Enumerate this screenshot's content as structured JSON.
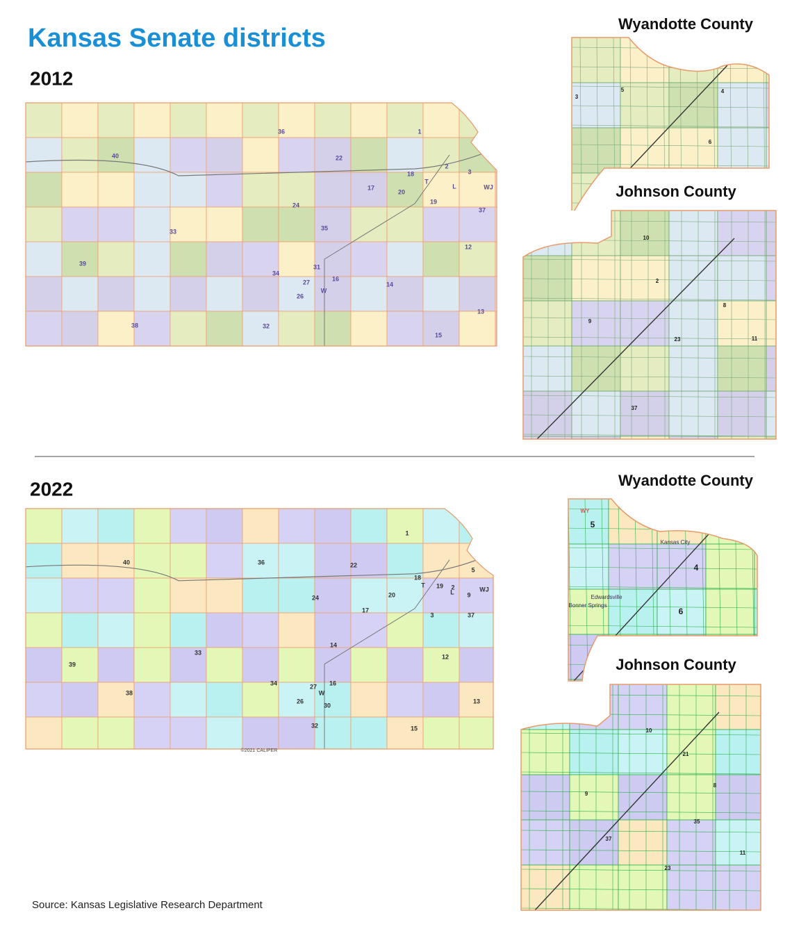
{
  "title": "Kansas Senate districts",
  "maps": [
    {
      "year": "2012",
      "state_labels": [
        "36",
        "40",
        "22",
        "1",
        "2",
        "3",
        "18",
        "T",
        "L",
        "WJ",
        "17",
        "20",
        "19",
        "24",
        "37",
        "33",
        "35",
        "12",
        "39",
        "31",
        "34",
        "16",
        "27",
        "W",
        "26",
        "14",
        "13",
        "38",
        "32",
        "15"
      ],
      "insets": [
        {
          "title": "Wyandotte County",
          "labels": [
            "3",
            "5",
            "4",
            "6"
          ]
        },
        {
          "title": "Johnson County",
          "labels": [
            "10",
            "2",
            "8",
            "9",
            "23",
            "11",
            "37"
          ]
        }
      ]
    },
    {
      "year": "2022",
      "credit": "©2021 CALIPER",
      "state_labels": [
        "1",
        "40",
        "36",
        "22",
        "5",
        "18",
        "T",
        "19",
        "2",
        "L",
        "9",
        "WJ",
        "20",
        "24",
        "17",
        "3",
        "37",
        "14",
        "33",
        "12",
        "39",
        "34",
        "27",
        "16",
        "W",
        "38",
        "26",
        "30",
        "13",
        "32",
        "15"
      ],
      "insets": [
        {
          "title": "Wyandotte County",
          "labels": [
            "WY",
            "5",
            "Kansas City",
            "4",
            "Edwardsville",
            "Bonner Springs",
            "6"
          ]
        },
        {
          "title": "Johnson County",
          "labels": [
            "10",
            "21",
            "8",
            "9",
            "35",
            "37",
            "23",
            "11"
          ]
        }
      ]
    }
  ],
  "source": "Source: Kansas Legislative Research Department"
}
